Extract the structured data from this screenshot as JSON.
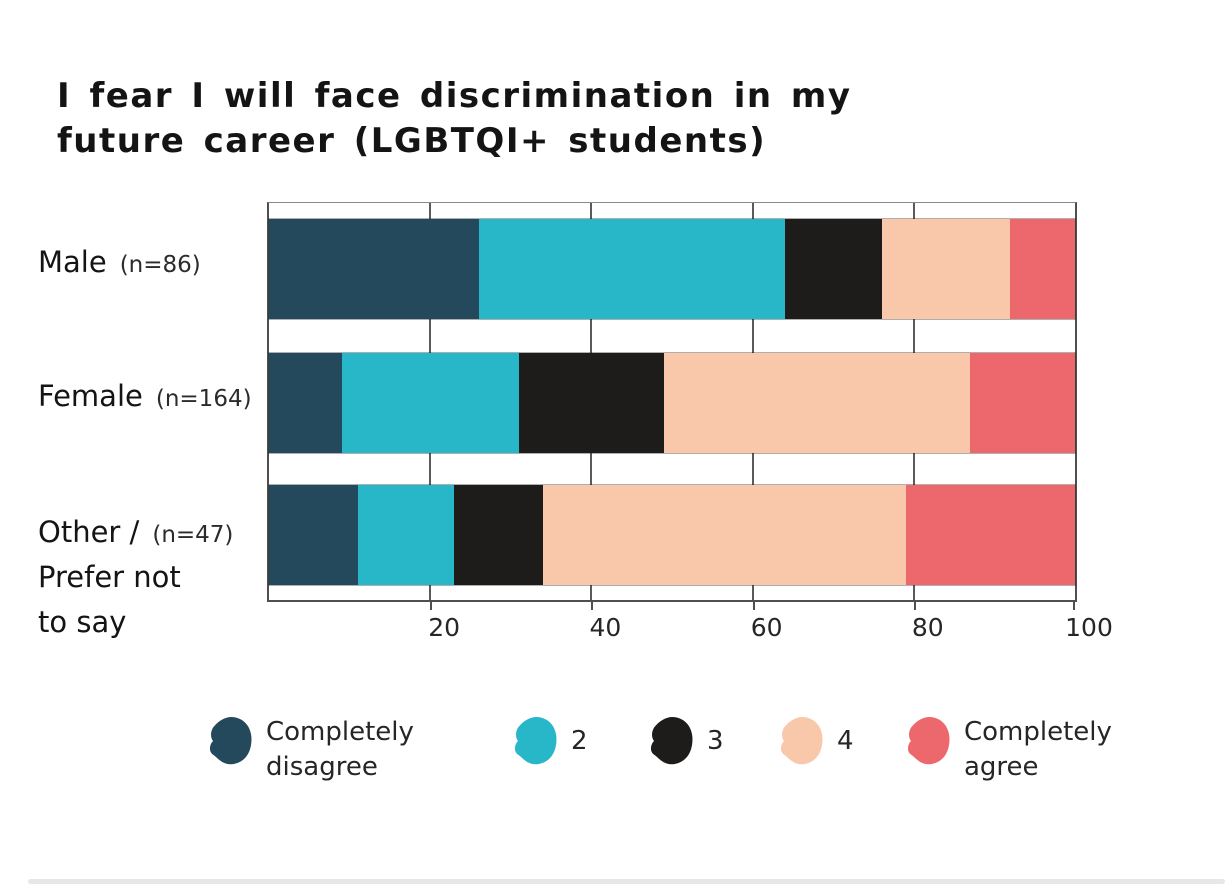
{
  "title": {
    "lines": [
      "I fear I will face discrimination in my",
      "future career (LGBTQI+ students)"
    ]
  },
  "chart_data": {
    "type": "bar",
    "orientation": "horizontal",
    "stacked": true,
    "units": "percent",
    "title": "I fear I will face discrimination in my future career (LGBTQI+ students)",
    "xlim": [
      0,
      100
    ],
    "x_ticks": [
      20,
      40,
      60,
      80,
      100
    ],
    "grid": true,
    "legend_position": "bottom",
    "series_labels": [
      "Completely disagree",
      "2",
      "3",
      "4",
      "Completely agree"
    ],
    "colors": [
      "#24495C",
      "#28B6C9",
      "#1E1C1A",
      "#F9C7AA",
      "#EC686D"
    ],
    "categories": [
      {
        "label": "Male",
        "label_lines": [
          "Male"
        ],
        "n": "(n=86)",
        "values": [
          26,
          38,
          12,
          16,
          8
        ]
      },
      {
        "label": "Female",
        "label_lines": [
          "Female"
        ],
        "n": "(n=164)",
        "values": [
          9,
          22,
          18,
          38,
          13
        ]
      },
      {
        "label": "Other / Prefer not to say",
        "label_lines": [
          "Other /",
          "Prefer not",
          "to say"
        ],
        "n": "(n=47)",
        "values": [
          11,
          12,
          11,
          45,
          21
        ]
      }
    ]
  },
  "legend": {
    "items": [
      {
        "label": "Completely disagree",
        "label_lines": [
          "Completely",
          "disagree"
        ],
        "color": "#24495C"
      },
      {
        "label": "2",
        "label_lines": [
          "2"
        ],
        "color": "#28B6C9"
      },
      {
        "label": "3",
        "label_lines": [
          "3"
        ],
        "color": "#1E1C1A"
      },
      {
        "label": "4",
        "label_lines": [
          "4"
        ],
        "color": "#F9C7AA"
      },
      {
        "label": "Completely agree",
        "label_lines": [
          "Completely",
          "agree"
        ],
        "color": "#EC686D"
      }
    ]
  }
}
